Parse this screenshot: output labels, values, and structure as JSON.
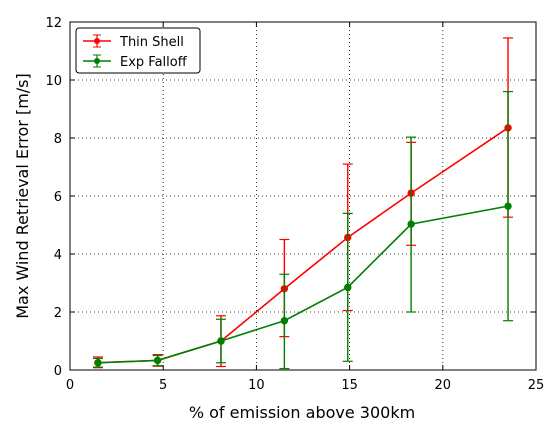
{
  "chart_data": {
    "type": "line",
    "xlabel": "% of emission above 300km",
    "ylabel": "Max Wind Retrieval Error [m/s]",
    "xlim": [
      0,
      25
    ],
    "ylim": [
      0,
      12
    ],
    "xticks": [
      0,
      5,
      10,
      15,
      20,
      25
    ],
    "yticks": [
      0,
      2,
      4,
      6,
      8,
      10,
      12
    ],
    "grid": true,
    "grid_style": "dotted",
    "legend_position": "top-left",
    "series": [
      {
        "name": "Thin Shell",
        "color": "#ff0000",
        "x": [
          1.5,
          4.7,
          8.1,
          11.5,
          14.9,
          18.3,
          23.5
        ],
        "y": [
          0.25,
          0.33,
          1.0,
          2.8,
          4.57,
          6.1,
          8.35
        ],
        "err_lo": [
          0.17,
          0.2,
          0.88,
          1.65,
          2.52,
          1.8,
          3.08
        ],
        "err_hi": [
          0.2,
          0.2,
          0.87,
          1.7,
          2.53,
          1.75,
          3.1
        ]
      },
      {
        "name": "Exp Falloff",
        "color": "#008000",
        "x": [
          1.5,
          4.7,
          8.1,
          11.5,
          14.9,
          18.3,
          23.5
        ],
        "y": [
          0.25,
          0.33,
          1.0,
          1.7,
          2.85,
          5.03,
          5.65
        ],
        "err_lo": [
          0.15,
          0.18,
          0.75,
          1.65,
          2.55,
          3.03,
          3.95
        ],
        "err_hi": [
          0.15,
          0.17,
          0.75,
          1.6,
          2.55,
          3.0,
          3.95
        ]
      }
    ]
  }
}
